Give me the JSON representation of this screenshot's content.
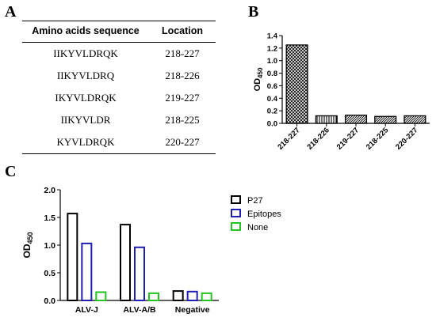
{
  "panels": {
    "a": "A",
    "b": "B",
    "c": "C"
  },
  "table": {
    "headers": [
      "Amino acids sequence",
      "Location"
    ],
    "rows": [
      [
        "IIKYVLDRQK",
        "218-227"
      ],
      [
        "IIKYVLDRQ",
        "218-226"
      ],
      [
        "IKYVLDRQK",
        "219-227"
      ],
      [
        "IIKYVLDR",
        "218-225"
      ],
      [
        "KYVLDRQK",
        "220-227"
      ]
    ]
  },
  "chart_data": [
    {
      "type": "bar",
      "panel": "B",
      "ylabel": "OD450",
      "ylabel_main": "OD",
      "ylabel_sub": "450",
      "ylim": [
        0,
        1.4
      ],
      "yticks": [
        "0.0",
        "0.2",
        "0.4",
        "0.6",
        "0.8",
        "1.0",
        "1.2",
        "1.4"
      ],
      "categories": [
        "218-227",
        "218-226",
        "219-227",
        "218-225",
        "220-227"
      ],
      "values": [
        1.25,
        0.12,
        0.13,
        0.11,
        0.12
      ],
      "patterns": [
        "crosshatch",
        "vertical",
        "diagonal",
        "diagonal",
        "diagonal"
      ]
    },
    {
      "type": "bar",
      "panel": "C",
      "ylabel": "OD450",
      "ylabel_main": "OD",
      "ylabel_sub": "450",
      "ylim": [
        0,
        2.0
      ],
      "yticks": [
        "0.0",
        "0.5",
        "1.0",
        "1.5",
        "2.0"
      ],
      "categories": [
        "ALV-J",
        "ALV-A/B",
        "Negative"
      ],
      "series": [
        {
          "name": "P27",
          "color": "#000000",
          "values": [
            1.57,
            1.37,
            0.17
          ]
        },
        {
          "name": "Epitopes",
          "color": "#1f1fb4",
          "values": [
            1.03,
            0.96,
            0.16
          ]
        },
        {
          "name": "None",
          "color": "#22c322",
          "values": [
            0.15,
            0.13,
            0.13
          ]
        }
      ],
      "legend": "top-right"
    }
  ]
}
